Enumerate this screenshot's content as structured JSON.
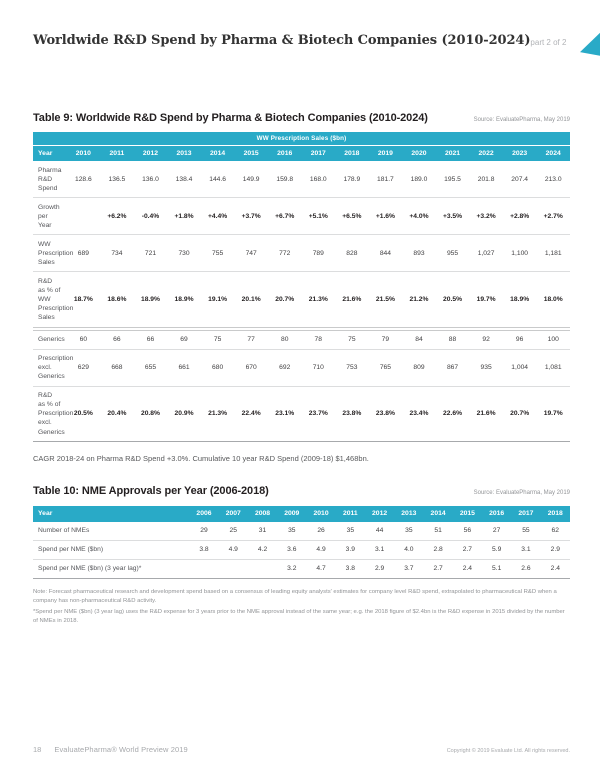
{
  "colors": {
    "teal": "#29AAC7",
    "red": "#D8524E"
  },
  "header": {
    "title": "Worldwide R&D Spend by Pharma & Biotech Companies (2010-2024)",
    "part_label": "part 2 of 2"
  },
  "table9": {
    "title": "Table 9: Worldwide R&D Spend by Pharma & Biotech Companies (2010-2024)",
    "source": "Source: EvaluatePharma, May 2019",
    "band_label": "WW Prescription Sales ($bn)",
    "year_label": "Year",
    "years": [
      "2010",
      "2011",
      "2012",
      "2013",
      "2014",
      "2015",
      "2016",
      "2017",
      "2018",
      "2019",
      "2020",
      "2021",
      "2022",
      "2023",
      "2024"
    ],
    "rows": [
      {
        "label": "Pharma R&D Spend",
        "values": [
          "128.6",
          "136.5",
          "136.0",
          "138.4",
          "144.6",
          "149.9",
          "159.8",
          "168.0",
          "178.9",
          "181.7",
          "189.0",
          "195.5",
          "201.8",
          "207.4",
          "213.0"
        ]
      },
      {
        "label": "Growth per Year",
        "bold": true,
        "red_value_indices": [
          2
        ],
        "values": [
          "",
          "+6.2%",
          "-0.4%",
          "+1.8%",
          "+4.4%",
          "+3.7%",
          "+6.7%",
          "+5.1%",
          "+6.5%",
          "+1.6%",
          "+4.0%",
          "+3.5%",
          "+3.2%",
          "+2.8%",
          "+2.7%"
        ]
      },
      {
        "label": "WW Prescription Sales",
        "values": [
          "689",
          "734",
          "721",
          "730",
          "755",
          "747",
          "772",
          "789",
          "828",
          "844",
          "893",
          "955",
          "1,027",
          "1,100",
          "1,181"
        ]
      },
      {
        "label": "R&D as % of WW Prescription Sales",
        "bold": true,
        "values": [
          "18.7%",
          "18.6%",
          "18.9%",
          "18.9%",
          "19.1%",
          "20.1%",
          "20.7%",
          "21.3%",
          "21.6%",
          "21.5%",
          "21.2%",
          "20.5%",
          "19.7%",
          "18.9%",
          "18.0%"
        ]
      },
      {
        "label": "Generics",
        "section_start": true,
        "values": [
          "60",
          "66",
          "66",
          "69",
          "75",
          "77",
          "80",
          "78",
          "75",
          "79",
          "84",
          "88",
          "92",
          "96",
          "100"
        ]
      },
      {
        "label": "Prescription excl. Generics",
        "values": [
          "629",
          "668",
          "655",
          "661",
          "680",
          "670",
          "692",
          "710",
          "753",
          "765",
          "809",
          "867",
          "935",
          "1,004",
          "1,081"
        ]
      },
      {
        "label": "R&D as % of Prescription excl. Generics",
        "bold": true,
        "values": [
          "20.5%",
          "20.4%",
          "20.8%",
          "20.9%",
          "21.3%",
          "22.4%",
          "23.1%",
          "23.7%",
          "23.8%",
          "23.8%",
          "23.4%",
          "22.6%",
          "21.6%",
          "20.7%",
          "19.7%"
        ]
      }
    ]
  },
  "caption": "CAGR 2018-24 on Pharma R&D Spend +3.0%. Cumulative 10 year R&D Spend (2009-18) $1,468bn.",
  "table10": {
    "title": "Table 10: NME Approvals per Year (2006-2018)",
    "source": "Source: EvaluatePharma, May 2019",
    "year_label": "Year",
    "years": [
      "2006",
      "2007",
      "2008",
      "2009",
      "2010",
      "2011",
      "2012",
      "2013",
      "2014",
      "2015",
      "2016",
      "2017",
      "2018"
    ],
    "rows": [
      {
        "label": "Number of NMEs",
        "values": [
          "29",
          "25",
          "31",
          "35",
          "26",
          "35",
          "44",
          "35",
          "51",
          "56",
          "27",
          "55",
          "62"
        ]
      },
      {
        "label": "Spend per NME ($bn)",
        "values": [
          "3.8",
          "4.9",
          "4.2",
          "3.6",
          "4.9",
          "3.9",
          "3.1",
          "4.0",
          "2.8",
          "2.7",
          "5.9",
          "3.1",
          "2.9"
        ]
      },
      {
        "label": "Spend per NME ($bn) (3 year lag)*",
        "values": [
          "",
          "",
          "",
          "3.2",
          "4.7",
          "3.8",
          "2.9",
          "3.7",
          "2.7",
          "2.4",
          "5.1",
          "2.6",
          "2.4"
        ]
      }
    ]
  },
  "notes": [
    "Note: Forecast pharmaceutical research and development spend based on a consensus of leading equity analysts' estimates for company level R&D spend, extrapolated to pharmaceutical R&D when a company has non-pharmaceutical R&D activity.",
    "*Spend per NME ($bn) (3 year lag) uses the R&D expense for 3 years prior to the NME approval instead of the same year; e.g. the 2018 figure of $2.4bn is the R&D expense in 2015 divided by the number of NMEs in 2018."
  ],
  "footer": {
    "page_number": "18",
    "brand": "EvaluatePharma® World Preview 2019",
    "copyright": "Copyright © 2019 Evaluate Ltd. All rights reserved."
  }
}
